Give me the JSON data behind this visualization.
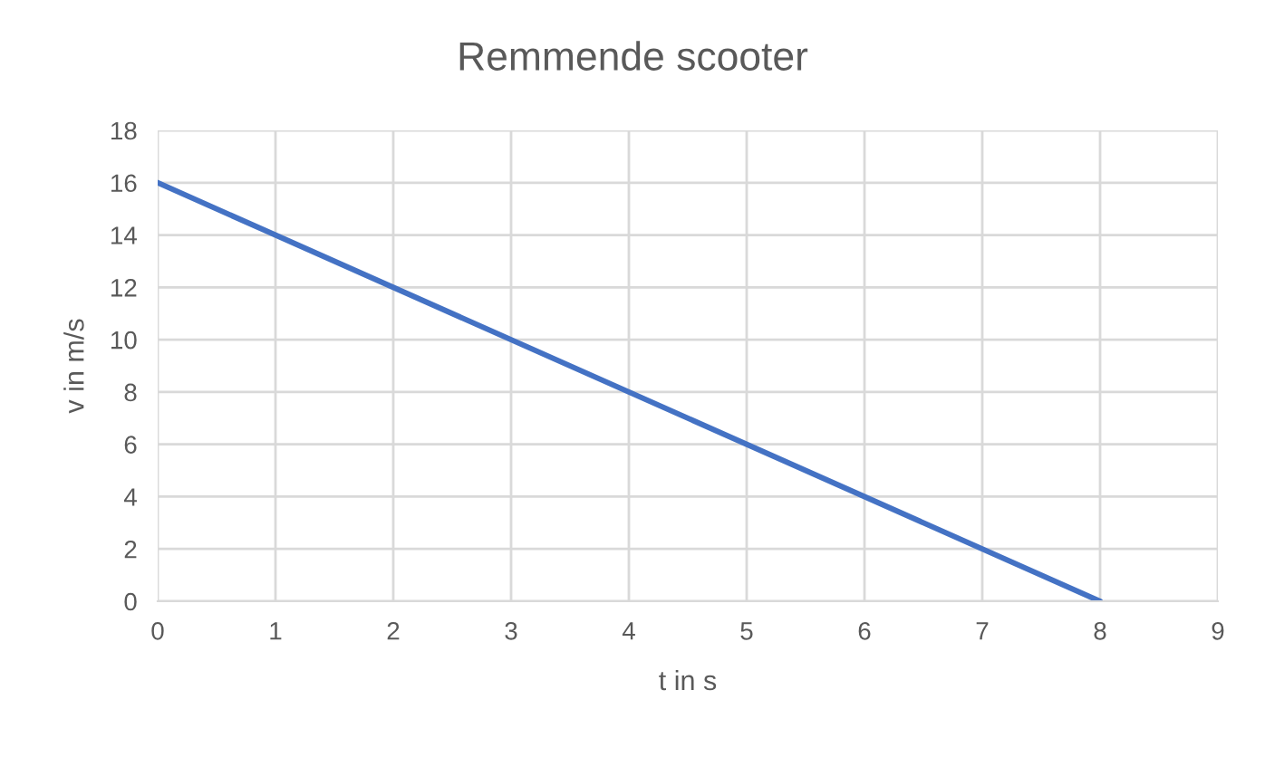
{
  "chart_data": {
    "type": "line",
    "title": "Remmende scooter",
    "xlabel": "t in s",
    "ylabel": "v in m/s",
    "x": [
      0,
      8
    ],
    "series": [
      {
        "color": "#4472c4",
        "values": [
          16,
          0
        ]
      }
    ],
    "xlim": [
      0,
      9
    ],
    "xticks": [
      0,
      1,
      2,
      3,
      4,
      5,
      6,
      7,
      8,
      9
    ],
    "ylim": [
      0,
      18
    ],
    "yticks": [
      0,
      2,
      4,
      6,
      8,
      10,
      12,
      14,
      16,
      18
    ],
    "grid": true,
    "legend": false,
    "marker": "none",
    "line_style": "solid"
  }
}
